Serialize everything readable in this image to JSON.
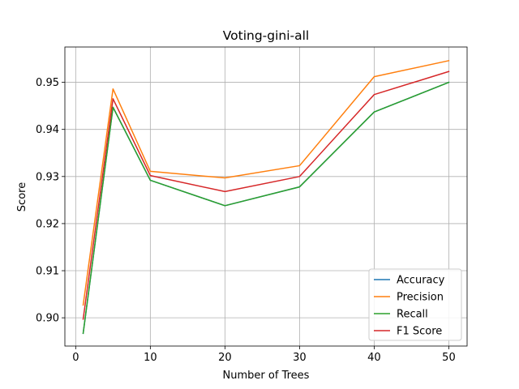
{
  "chart_data": {
    "type": "line",
    "title": "Voting-gini-all",
    "xlabel": "Number of Trees",
    "ylabel": "Score",
    "x": [
      1,
      5,
      10,
      20,
      30,
      40,
      50
    ],
    "xlim": [
      -1.45,
      52.45
    ],
    "ylim": [
      0.894,
      0.9575
    ],
    "xticks": [
      0,
      10,
      20,
      30,
      40,
      50
    ],
    "yticks": [
      0.9,
      0.91,
      0.92,
      0.93,
      0.94,
      0.95
    ],
    "xtick_labels": [
      "0",
      "10",
      "20",
      "30",
      "40",
      "50"
    ],
    "ytick_labels": [
      "0.90",
      "0.91",
      "0.92",
      "0.93",
      "0.94",
      "0.95"
    ],
    "grid": true,
    "legend_position": "lower-right",
    "series": [
      {
        "name": "Accuracy",
        "color": "#1f77b4",
        "values": [
          0.8967,
          0.9447,
          0.9292,
          0.9238,
          0.9278,
          0.9437,
          0.95
        ]
      },
      {
        "name": "Precision",
        "color": "#ff7f0e",
        "values": [
          0.9027,
          0.9486,
          0.9311,
          0.9297,
          0.9323,
          0.9512,
          0.9546
        ]
      },
      {
        "name": "Recall",
        "color": "#2ca02c",
        "values": [
          0.8967,
          0.9447,
          0.9292,
          0.9238,
          0.9278,
          0.9437,
          0.95
        ]
      },
      {
        "name": "F1 Score",
        "color": "#d62728",
        "values": [
          0.8997,
          0.9465,
          0.9302,
          0.9268,
          0.93,
          0.9474,
          0.9523
        ]
      }
    ]
  }
}
